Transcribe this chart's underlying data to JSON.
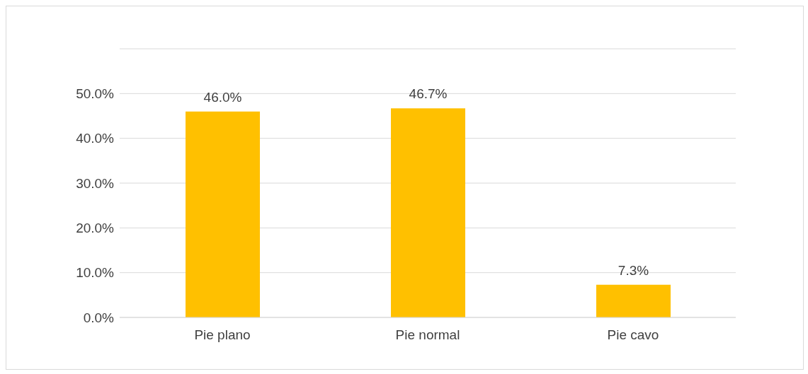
{
  "chart_data": {
    "type": "bar",
    "categories": [
      "Pie plano",
      "Pie normal",
      "Pie cavo"
    ],
    "values": [
      46.0,
      46.7,
      7.3
    ],
    "color": "#ffc000",
    "value_labels": [
      "46.0%",
      "46.7%",
      "7.3%"
    ],
    "ylim": [
      0,
      60
    ],
    "yticks": [
      {
        "value": 0,
        "label": "0.0%"
      },
      {
        "value": 10,
        "label": "10.0%"
      },
      {
        "value": 20,
        "label": "20.0%"
      },
      {
        "value": 30,
        "label": "30.0%"
      },
      {
        "value": 40,
        "label": "40.0%"
      },
      {
        "value": 50,
        "label": "50.0%"
      },
      {
        "value": 60,
        "label": null
      }
    ],
    "grid": "y"
  }
}
